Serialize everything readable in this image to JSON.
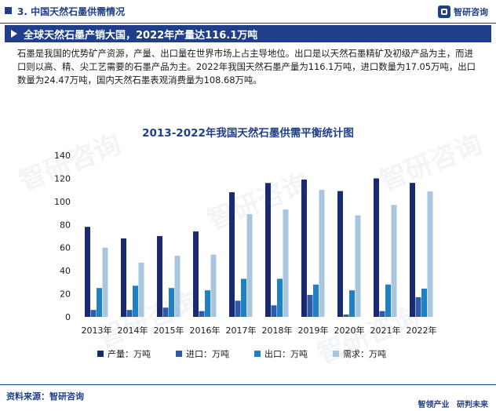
{
  "header": {
    "section_title": "3. 中国天然石墨供需情况",
    "logo_text": "智研咨询"
  },
  "banner": {
    "text": "全球天然石墨产销大国，2022年产量达116.1万吨"
  },
  "paragraph": {
    "text": "石墨是我国的优势矿产资源，产量、出口量在世界市场上占主导地位。出口是以天然石墨精矿及初级产品为主，而进口则以高、精、尖工艺需要的石墨产品为主。2022年我国天然石墨产量为116.1万吨，进口数量为17.05万吨，出口数量为24.47万吨，国内天然石墨表观消费量为108.68万吨。"
  },
  "footer": {
    "source": "资料来源：智研咨询",
    "brand_left": "智领产业",
    "brand_right": "研判未来"
  },
  "colors": {
    "navy": "#1f3f8a",
    "series": [
      "#1a2a6e",
      "#2e5aa8",
      "#1f80c4",
      "#a9c6e0"
    ]
  },
  "chart_data": {
    "type": "bar",
    "title": "2013-2022年我国天然石墨供需平衡统计图",
    "categories": [
      "2013年",
      "2014年",
      "2015年",
      "2016年",
      "2017年",
      "2018年",
      "2019年",
      "2020年",
      "2021年",
      "2022年"
    ],
    "series": [
      {
        "name": "产量：万吨",
        "values": [
          78,
          68,
          70,
          74,
          108,
          116,
          119,
          109,
          120,
          116.1
        ]
      },
      {
        "name": "进口：万吨",
        "values": [
          6,
          6,
          8,
          5,
          14,
          10,
          19,
          2,
          5,
          17.05
        ]
      },
      {
        "name": "出口：万吨",
        "values": [
          25,
          27,
          25,
          23,
          33,
          33,
          28,
          23,
          28,
          24.47
        ]
      },
      {
        "name": "需求：万吨",
        "values": [
          60,
          47,
          53,
          54,
          89,
          93,
          110,
          88,
          97,
          108.68
        ]
      }
    ],
    "ylim": [
      0,
      140
    ],
    "yticks": [
      0,
      20,
      40,
      60,
      80,
      100,
      120,
      140
    ],
    "xlabel": "",
    "ylabel": "",
    "grid": false,
    "legend": "bottom"
  }
}
